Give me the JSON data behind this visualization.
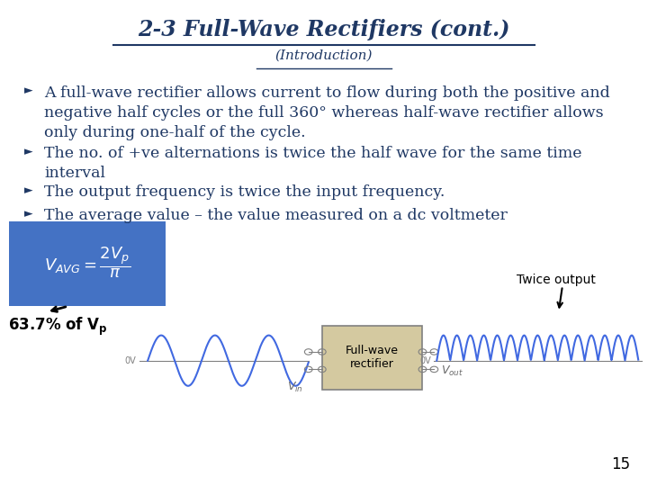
{
  "title": "2-3 Full-Wave Rectifiers (cont.)",
  "subtitle": "(Introduction)",
  "title_color": "#1F3864",
  "bg_color": "#FFFFFF",
  "bullets": [
    "A full-wave rectifier allows current to flow during both the positive and\nnegative half cycles or the full 360° whereas half-wave rectifier allows\nonly during one-half of the cycle.",
    "The no. of +ve alternations is twice the half wave for the same time\ninterval",
    "The output frequency is twice the input frequency.",
    "The average value – the value measured on a dc voltmeter"
  ],
  "formula_bg": "#4472C4",
  "sine_color": "#4169E1",
  "rectifier_box_color": "#D4C9A0",
  "page_num": "15",
  "twice_output_label": "Twice output"
}
